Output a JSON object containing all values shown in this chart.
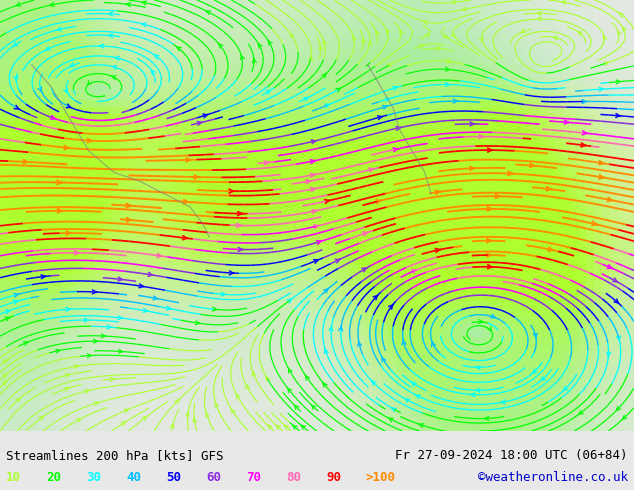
{
  "title_left": "Streamlines 200 hPa [kts] GFS",
  "title_right": "Fr 27-09-2024 18:00 UTC (06+84)",
  "credit": "©weatheronline.co.uk",
  "legend_values": [
    "10",
    "20",
    "30",
    "40",
    "50",
    "60",
    "70",
    "80",
    "90",
    ">100"
  ],
  "legend_colors": [
    "#adff2f",
    "#00ff00",
    "#00ffff",
    "#00bfff",
    "#0000ff",
    "#8a2be2",
    "#ff00ff",
    "#ff69b4",
    "#ff0000",
    "#ff8c00"
  ],
  "bg_color": "#e8e8e8",
  "land_color_low": "#90ee90",
  "land_color_high": "#adff2f",
  "fig_width": 6.34,
  "fig_height": 4.9,
  "dpi": 100,
  "streamline_speeds": [
    10,
    20,
    30,
    40,
    50,
    60,
    70,
    80,
    90,
    100
  ],
  "speed_colors": {
    "10": "#adff2f",
    "20": "#00ff00",
    "30": "#00ffff",
    "40": "#00bfff",
    "50": "#0000ff",
    "60": "#8a2be2",
    "70": "#ff00ff",
    "80": "#ff69b4",
    "90": "#ff0000",
    "100": "#ff8c00"
  },
  "bottom_bar_color": "#ffffff",
  "title_fontsize": 9,
  "legend_fontsize": 9,
  "credit_color": "#0000cd"
}
